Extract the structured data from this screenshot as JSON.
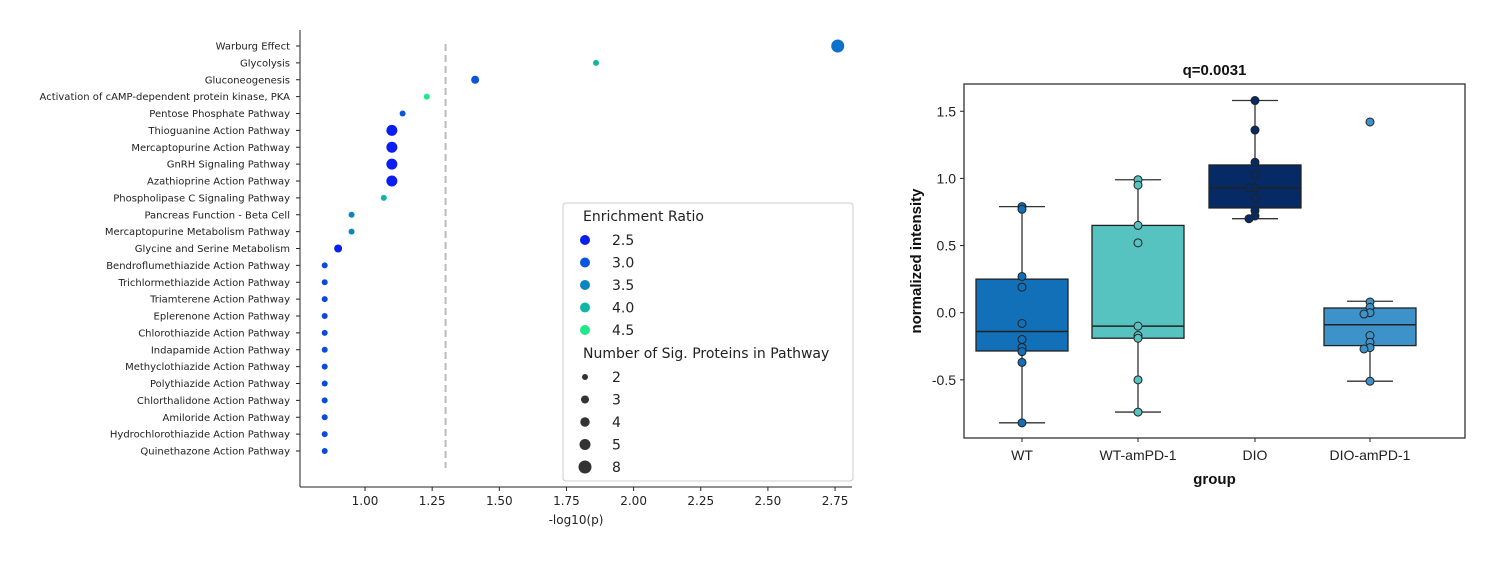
{
  "chart_data": [
    {
      "type": "scatter",
      "xlabel": "-log10(p)",
      "ylabel": "",
      "xlim": [
        0.76,
        2.81
      ],
      "xticks": [
        "1.00",
        "1.25",
        "1.50",
        "1.75",
        "2.00",
        "2.25",
        "2.50",
        "2.75"
      ],
      "threshold_line": 1.3,
      "grid": false,
      "legend_placement": "lower-right",
      "legend": {
        "color_title": "Enrichment Ratio",
        "color_entries": [
          {
            "label": "2.5",
            "value": 2.5,
            "color": "#0a1ef0"
          },
          {
            "label": "3.0",
            "value": 3.0,
            "color": "#0a55d8"
          },
          {
            "label": "3.5",
            "value": 3.5,
            "color": "#0a85c0"
          },
          {
            "label": "4.0",
            "value": 4.0,
            "color": "#10b5a5"
          },
          {
            "label": "4.5",
            "value": 4.5,
            "color": "#20e888"
          }
        ],
        "size_title": "Number of Sig. Proteins in Pathway",
        "size_entries": [
          {
            "label": "2",
            "value": 2
          },
          {
            "label": "3",
            "value": 3
          },
          {
            "label": "4",
            "value": 4
          },
          {
            "label": "5",
            "value": 5
          },
          {
            "label": "8",
            "value": 8
          }
        ]
      },
      "points": [
        {
          "pathway": "Warburg Effect",
          "x": 2.76,
          "ratio": 3.3,
          "count": 8
        },
        {
          "pathway": "Glycolysis",
          "x": 1.86,
          "ratio": 4.0,
          "count": 2
        },
        {
          "pathway": "Gluconeogenesis",
          "x": 1.41,
          "ratio": 3.0,
          "count": 3
        },
        {
          "pathway": "Activation of cAMP-dependent protein kinase, PKA",
          "x": 1.23,
          "ratio": 4.5,
          "count": 2
        },
        {
          "pathway": "Pentose Phosphate Pathway",
          "x": 1.14,
          "ratio": 3.0,
          "count": 2
        },
        {
          "pathway": "Thioguanine Action Pathway",
          "x": 1.1,
          "ratio": 2.5,
          "count": 5
        },
        {
          "pathway": "Mercaptopurine Action Pathway",
          "x": 1.1,
          "ratio": 2.5,
          "count": 5
        },
        {
          "pathway": "GnRH Signaling Pathway",
          "x": 1.1,
          "ratio": 2.5,
          "count": 5
        },
        {
          "pathway": "Azathioprine Action Pathway",
          "x": 1.1,
          "ratio": 2.5,
          "count": 5
        },
        {
          "pathway": "Phospholipase C Signaling Pathway",
          "x": 1.07,
          "ratio": 4.0,
          "count": 2
        },
        {
          "pathway": "Pancreas Function - Beta Cell",
          "x": 0.95,
          "ratio": 3.5,
          "count": 2
        },
        {
          "pathway": "Mercaptopurine Metabolism Pathway",
          "x": 0.95,
          "ratio": 3.5,
          "count": 2
        },
        {
          "pathway": "Glycine and Serine Metabolism",
          "x": 0.9,
          "ratio": 2.5,
          "count": 3
        },
        {
          "pathway": "Bendroflumethiazide Action Pathway",
          "x": 0.85,
          "ratio": 2.9,
          "count": 2
        },
        {
          "pathway": "Trichlormethiazide Action Pathway",
          "x": 0.85,
          "ratio": 2.9,
          "count": 2
        },
        {
          "pathway": "Triamterene Action Pathway",
          "x": 0.85,
          "ratio": 2.9,
          "count": 2
        },
        {
          "pathway": "Eplerenone Action Pathway",
          "x": 0.85,
          "ratio": 2.9,
          "count": 2
        },
        {
          "pathway": "Chlorothiazide Action Pathway",
          "x": 0.85,
          "ratio": 2.9,
          "count": 2
        },
        {
          "pathway": "Indapamide Action Pathway",
          "x": 0.85,
          "ratio": 2.9,
          "count": 2
        },
        {
          "pathway": "Methyclothiazide Action Pathway",
          "x": 0.85,
          "ratio": 2.9,
          "count": 2
        },
        {
          "pathway": "Polythiazide Action Pathway",
          "x": 0.85,
          "ratio": 2.9,
          "count": 2
        },
        {
          "pathway": "Chlorthalidone Action Pathway",
          "x": 0.85,
          "ratio": 2.9,
          "count": 2
        },
        {
          "pathway": "Amiloride Action Pathway",
          "x": 0.85,
          "ratio": 2.9,
          "count": 2
        },
        {
          "pathway": "Hydrochlorothiazide Action Pathway",
          "x": 0.85,
          "ratio": 2.9,
          "count": 2
        },
        {
          "pathway": "Quinethazone Action Pathway",
          "x": 0.85,
          "ratio": 2.9,
          "count": 2
        }
      ]
    },
    {
      "type": "box",
      "title": "q=0.0031",
      "xlabel": "group",
      "ylabel": "normalized intensity",
      "ylim": [
        -0.93,
        1.7
      ],
      "yticks": [
        "-0.5",
        "0.0",
        "0.5",
        "1.0",
        "1.5"
      ],
      "grid": false,
      "groups": [
        {
          "name": "WT",
          "color": "#1170b8",
          "q1": -0.285,
          "median": -0.14,
          "q3": 0.25,
          "whisker_low": -0.82,
          "whisker_high": 0.79,
          "points": [
            0.79,
            0.77,
            0.27,
            0.19,
            -0.08,
            -0.2,
            -0.26,
            -0.29,
            -0.37,
            -0.82
          ]
        },
        {
          "name": "WT-amPD-1",
          "color": "#56c3c1",
          "q1": -0.19,
          "median": -0.1,
          "q3": 0.65,
          "whisker_low": -0.74,
          "whisker_high": 0.99,
          "points": [
            0.99,
            0.95,
            0.65,
            0.52,
            -0.1,
            -0.17,
            -0.19,
            -0.5,
            -0.74
          ]
        },
        {
          "name": "DIO",
          "color": "#052a66",
          "q1": 0.78,
          "median": 0.93,
          "q3": 1.1,
          "whisker_low": 0.7,
          "whisker_high": 1.58,
          "points": [
            1.58,
            1.36,
            1.12,
            1.03,
            0.93,
            0.93,
            0.85,
            0.76,
            0.72,
            0.7
          ]
        },
        {
          "name": "DIO-amPD-1",
          "color": "#3d93c9",
          "q1": -0.245,
          "median": -0.09,
          "q3": 0.035,
          "whisker_low": -0.51,
          "whisker_high": 0.085,
          "points": [
            1.42,
            0.08,
            0.04,
            0.0,
            -0.01,
            -0.17,
            -0.22,
            -0.26,
            -0.27,
            -0.51
          ]
        }
      ]
    }
  ]
}
